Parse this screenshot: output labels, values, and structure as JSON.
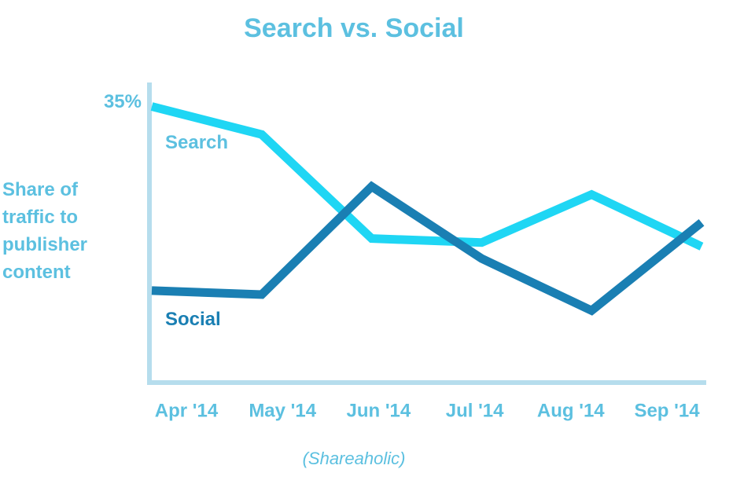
{
  "chart_data": {
    "type": "line",
    "title": "Search vs. Social",
    "y_label": "Share of traffic to publisher content",
    "source": "(Shareaholic)",
    "categories": [
      "Apr '14",
      "May '14",
      "Jun '14",
      "Jul '14",
      "Aug '14",
      "Sep '14"
    ],
    "series": [
      {
        "name": "Search",
        "color": "#1fd6f4",
        "values": [
          34.5,
          31,
          18,
          17.5,
          23.5,
          17
        ]
      },
      {
        "name": "Social",
        "color": "#1a7fb3",
        "values": [
          11.5,
          11,
          24.5,
          15.5,
          9,
          20
        ]
      }
    ],
    "ylim": [
      0,
      37.5
    ],
    "yticks": [
      {
        "value": 35,
        "label": "35%"
      }
    ],
    "grid": false
  }
}
